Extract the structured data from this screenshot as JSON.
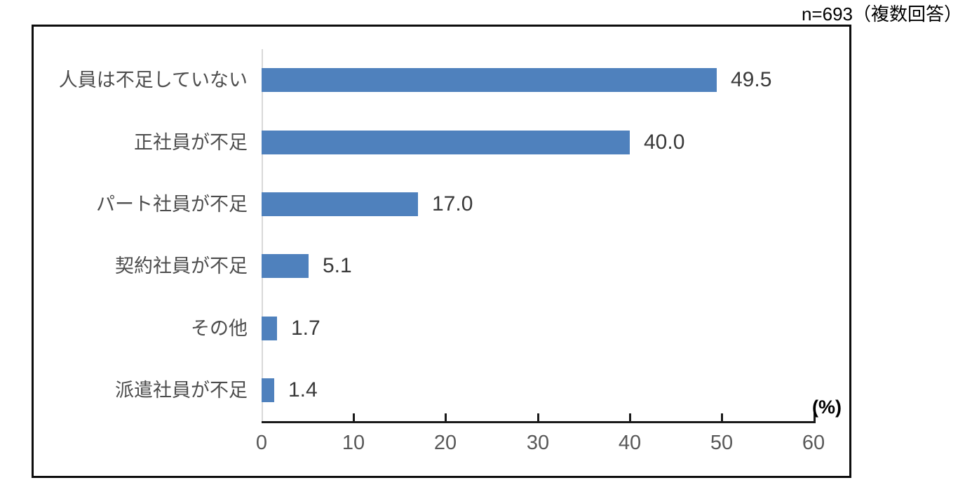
{
  "annotation": {
    "sample_note": "n=693（複数回答）"
  },
  "chart_data": {
    "type": "bar",
    "orientation": "horizontal",
    "title": "",
    "categories": [
      "人員は不足していない",
      "正社員が不足",
      "パート社員が不足",
      "契約社員が不足",
      "その他",
      "派遣社員が不足"
    ],
    "values": [
      49.5,
      40.0,
      17.0,
      5.1,
      1.7,
      1.4
    ],
    "value_labels": [
      "49.5",
      "40.0",
      "17.0",
      "5.1",
      "1.7",
      "1.4"
    ],
    "xlabel": "(%)",
    "ylabel": "",
    "x_ticks": [
      0,
      10,
      20,
      30,
      40,
      50,
      60
    ],
    "xlim": [
      0,
      60
    ],
    "bar_color": "#4F81BD",
    "grid": false,
    "legend_position": "none"
  }
}
